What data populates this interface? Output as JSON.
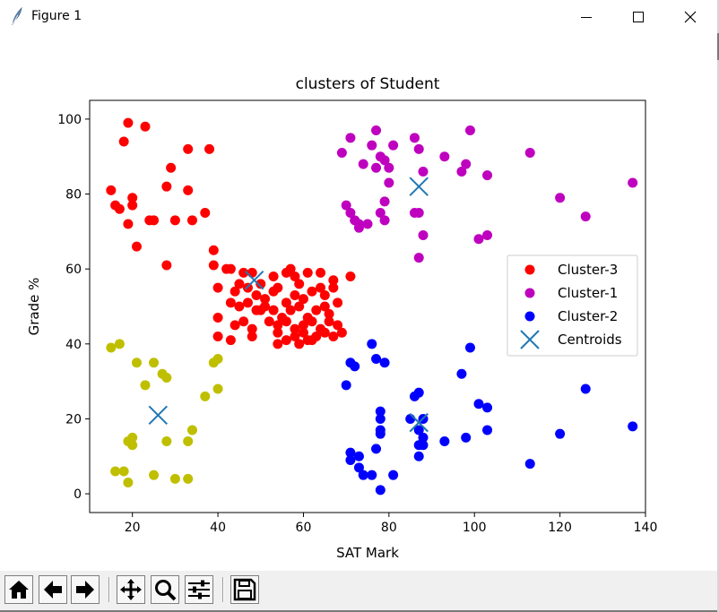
{
  "window": {
    "title": "Figure 1",
    "icons": [
      "feather-icon",
      "minimize-icon",
      "maximize-icon",
      "close-icon"
    ]
  },
  "toolbar": {
    "buttons": [
      "home-icon",
      "back-icon",
      "forward-icon",
      "pan-icon",
      "zoom-icon",
      "configure-subplots-icon",
      "save-icon"
    ]
  },
  "chart_data": {
    "type": "scatter",
    "title": "clusters of Student",
    "xlabel": "SAT Mark",
    "ylabel": "Grade %",
    "xlim": [
      10,
      140
    ],
    "ylim": [
      -5,
      105
    ],
    "xticks": [
      "20",
      "40",
      "60",
      "80",
      "100",
      "120",
      "140"
    ],
    "yticks": [
      "0",
      "20",
      "40",
      "60",
      "80",
      "100"
    ],
    "xtick_values": [
      20,
      40,
      60,
      80,
      100,
      120,
      140
    ],
    "ytick_values": [
      0,
      20,
      40,
      60,
      80,
      100
    ],
    "grid": false,
    "legend_position": "right",
    "series": [
      {
        "name": "Cluster-3",
        "color": "#ff0000",
        "marker": "circle",
        "points": [
          [
            19,
            99
          ],
          [
            23,
            98
          ],
          [
            18,
            94
          ],
          [
            33,
            92
          ],
          [
            38,
            92
          ],
          [
            29,
            87
          ],
          [
            15,
            81
          ],
          [
            28,
            82
          ],
          [
            33,
            81
          ],
          [
            20,
            79
          ],
          [
            16,
            77
          ],
          [
            17,
            76
          ],
          [
            20,
            77
          ],
          [
            19,
            72
          ],
          [
            24,
            73
          ],
          [
            25,
            73
          ],
          [
            30,
            73
          ],
          [
            34,
            73
          ],
          [
            37,
            75
          ],
          [
            21,
            66
          ],
          [
            28,
            61
          ],
          [
            39,
            65
          ],
          [
            39,
            61
          ],
          [
            42,
            60
          ],
          [
            43,
            60
          ],
          [
            46,
            59
          ],
          [
            48,
            59
          ],
          [
            50,
            56
          ],
          [
            53,
            58
          ],
          [
            56,
            59
          ],
          [
            57,
            60
          ],
          [
            58,
            58
          ],
          [
            59,
            56
          ],
          [
            61,
            59
          ],
          [
            64,
            59
          ],
          [
            67,
            57
          ],
          [
            71,
            58
          ],
          [
            40,
            55
          ],
          [
            44,
            54
          ],
          [
            45,
            56
          ],
          [
            47,
            55
          ],
          [
            49,
            53
          ],
          [
            51,
            52
          ],
          [
            53,
            54
          ],
          [
            54,
            55
          ],
          [
            56,
            51
          ],
          [
            58,
            53
          ],
          [
            60,
            52
          ],
          [
            62,
            54
          ],
          [
            64,
            55
          ],
          [
            65,
            53
          ],
          [
            67,
            55
          ],
          [
            43,
            51
          ],
          [
            45,
            50
          ],
          [
            47,
            51
          ],
          [
            49,
            49
          ],
          [
            51,
            50
          ],
          [
            53,
            49
          ],
          [
            55,
            47
          ],
          [
            57,
            49
          ],
          [
            59,
            50
          ],
          [
            61,
            47
          ],
          [
            63,
            49
          ],
          [
            65,
            50
          ],
          [
            66,
            48
          ],
          [
            68,
            51
          ],
          [
            40,
            47
          ],
          [
            44,
            45
          ],
          [
            46,
            46
          ],
          [
            48,
            44
          ],
          [
            50,
            49
          ],
          [
            52,
            46
          ],
          [
            54,
            45
          ],
          [
            56,
            46
          ],
          [
            58,
            44
          ],
          [
            60,
            45
          ],
          [
            62,
            46
          ],
          [
            64,
            44
          ],
          [
            66,
            46
          ],
          [
            68,
            45
          ],
          [
            40,
            42
          ],
          [
            43,
            41
          ],
          [
            48,
            42
          ],
          [
            54,
            43
          ],
          [
            56,
            41
          ],
          [
            58,
            42
          ],
          [
            60,
            43
          ],
          [
            61,
            41
          ],
          [
            63,
            42
          ],
          [
            65,
            43
          ],
          [
            67,
            42
          ],
          [
            69,
            43
          ],
          [
            54,
            40
          ],
          [
            59,
            40
          ],
          [
            62,
            41
          ]
        ]
      },
      {
        "name": "Cluster-1",
        "color": "#bf00bf",
        "marker": "circle",
        "points": [
          [
            77,
            97
          ],
          [
            86,
            95
          ],
          [
            99,
            97
          ],
          [
            71,
            95
          ],
          [
            76,
            93
          ],
          [
            81,
            93
          ],
          [
            87,
            92
          ],
          [
            69,
            91
          ],
          [
            78,
            90
          ],
          [
            79,
            89
          ],
          [
            93,
            90
          ],
          [
            74,
            88
          ],
          [
            77,
            87
          ],
          [
            80,
            87
          ],
          [
            98,
            88
          ],
          [
            113,
            91
          ],
          [
            88,
            86
          ],
          [
            97,
            86
          ],
          [
            103,
            85
          ],
          [
            80,
            83
          ],
          [
            70,
            77
          ],
          [
            79,
            78
          ],
          [
            71,
            75
          ],
          [
            72,
            73
          ],
          [
            73,
            72
          ],
          [
            73,
            71
          ],
          [
            75,
            72
          ],
          [
            79,
            73
          ],
          [
            78,
            75
          ],
          [
            86,
            75
          ],
          [
            87,
            75
          ],
          [
            120,
            79
          ],
          [
            126,
            74
          ],
          [
            137,
            83
          ],
          [
            88,
            69
          ],
          [
            101,
            68
          ],
          [
            103,
            69
          ],
          [
            87,
            63
          ]
        ]
      },
      {
        "name": "Cluster-2",
        "color": "#0000ff",
        "marker": "circle",
        "points": [
          [
            76,
            40
          ],
          [
            99,
            39
          ],
          [
            77,
            36
          ],
          [
            71,
            35
          ],
          [
            72,
            34
          ],
          [
            79,
            35
          ],
          [
            97,
            32
          ],
          [
            70,
            29
          ],
          [
            126,
            28
          ],
          [
            86,
            26
          ],
          [
            87,
            27
          ],
          [
            101,
            24
          ],
          [
            103,
            23
          ],
          [
            78,
            22
          ],
          [
            78,
            20
          ],
          [
            85,
            20
          ],
          [
            88,
            20
          ],
          [
            78,
            17
          ],
          [
            78,
            16
          ],
          [
            87,
            17
          ],
          [
            103,
            17
          ],
          [
            137,
            18
          ],
          [
            88,
            15
          ],
          [
            93,
            14
          ],
          [
            98,
            15
          ],
          [
            120,
            16
          ],
          [
            87,
            13
          ],
          [
            88,
            13
          ],
          [
            71,
            11
          ],
          [
            71,
            9
          ],
          [
            73,
            10
          ],
          [
            77,
            12
          ],
          [
            87,
            10
          ],
          [
            113,
            8
          ],
          [
            73,
            7
          ],
          [
            74,
            5
          ],
          [
            76,
            5
          ],
          [
            81,
            5
          ],
          [
            78,
            1
          ]
        ]
      },
      {
        "name": "",
        "color": "#bfbf00",
        "marker": "circle",
        "points": [
          [
            15,
            39
          ],
          [
            17,
            40
          ],
          [
            21,
            35
          ],
          [
            25,
            35
          ],
          [
            40,
            36
          ],
          [
            39,
            35
          ],
          [
            27,
            32
          ],
          [
            28,
            31
          ],
          [
            23,
            29
          ],
          [
            40,
            28
          ],
          [
            37,
            26
          ],
          [
            34,
            17
          ],
          [
            19,
            14
          ],
          [
            20,
            15
          ],
          [
            20,
            13
          ],
          [
            28,
            14
          ],
          [
            33,
            14
          ],
          [
            16,
            6
          ],
          [
            18,
            6
          ],
          [
            25,
            5
          ],
          [
            30,
            4
          ],
          [
            33,
            4
          ],
          [
            19,
            3
          ]
        ]
      },
      {
        "name": "Centroids",
        "color": "#1f77b4",
        "marker": "x",
        "points": [
          [
            48.5,
            57
          ],
          [
            87,
            82
          ],
          [
            26,
            21
          ],
          [
            87,
            19
          ]
        ]
      }
    ]
  }
}
